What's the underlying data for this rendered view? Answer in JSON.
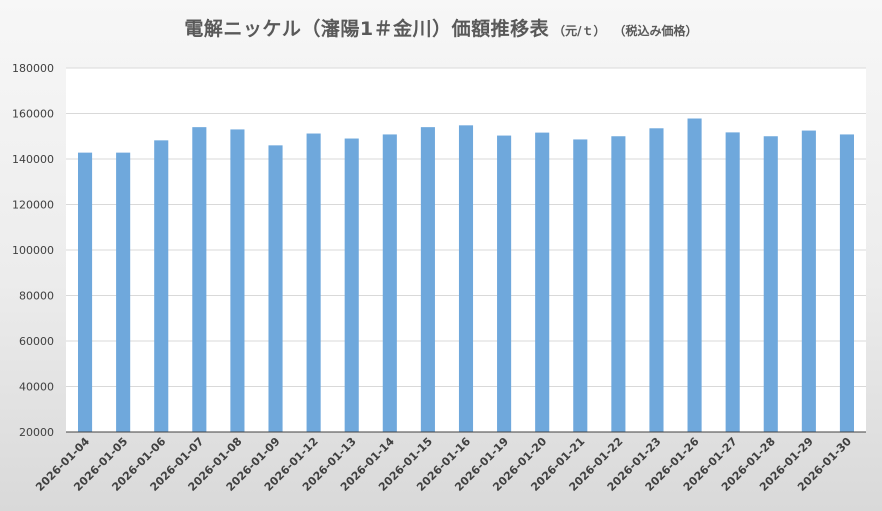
{
  "chart_data": {
    "type": "bar",
    "title": "電解ニッケル（瀋陽1＃金川）価額推移表",
    "unit": "（元/ｔ）",
    "note": "（税込み価格）",
    "xlabel": "",
    "ylabel": "",
    "ylim": [
      20000,
      180000
    ],
    "yticks": [
      20000,
      40000,
      60000,
      80000,
      100000,
      120000,
      140000,
      160000,
      180000
    ],
    "grid": true,
    "bar_color": "#6fa8dc",
    "categories": [
      "2026-01-04",
      "2026-01-05",
      "2026-01-06",
      "2026-01-07",
      "2026-01-08",
      "2026-01-09",
      "2026-01-12",
      "2026-01-13",
      "2026-01-14",
      "2026-01-15",
      "2026-01-16",
      "2026-01-19",
      "2026-01-20",
      "2026-01-21",
      "2026-01-22",
      "2026-01-23",
      "2026-01-26",
      "2026-01-27",
      "2026-01-28",
      "2026-01-29",
      "2026-01-30"
    ],
    "values": [
      142800,
      142800,
      148200,
      154000,
      153000,
      146000,
      151200,
      149000,
      150800,
      154000,
      154800,
      150300,
      151600,
      148600,
      150000,
      153500,
      157800,
      151700,
      150000,
      152500,
      150800
    ]
  }
}
